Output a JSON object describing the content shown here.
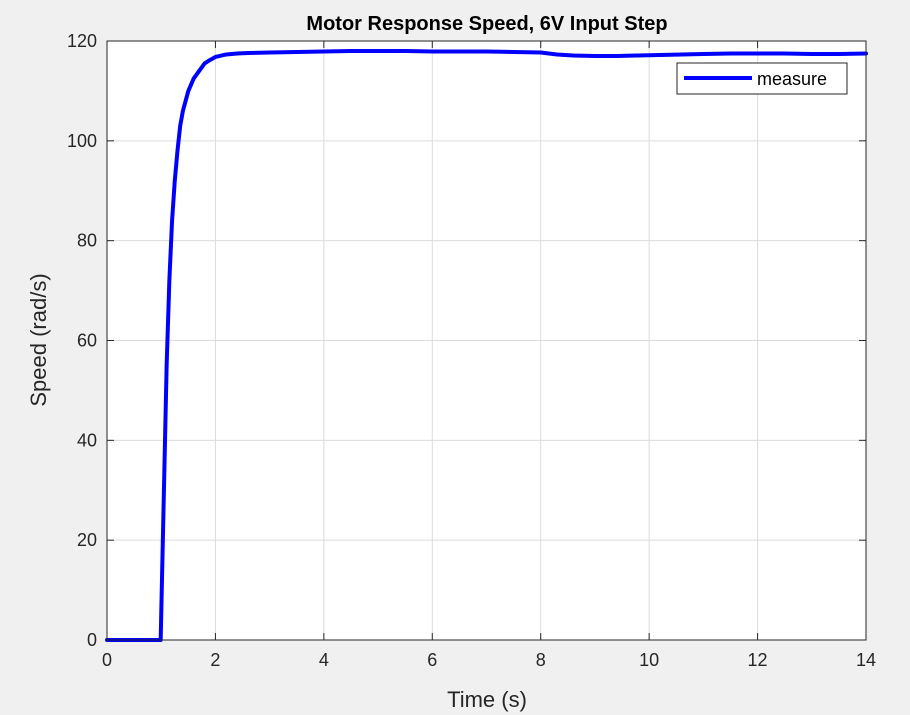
{
  "figure": {
    "background": "#f0f0f0",
    "plot_background": "#ffffff"
  },
  "chart_data": {
    "type": "line",
    "title": "Motor Response Speed, 6V Input Step",
    "xlabel": "Time (s)",
    "ylabel": "Speed (rad/s)",
    "xlim": [
      0,
      14
    ],
    "ylim": [
      0,
      120
    ],
    "xticks": [
      0,
      2,
      4,
      6,
      8,
      10,
      12,
      14
    ],
    "yticks": [
      0,
      20,
      40,
      60,
      80,
      100,
      120
    ],
    "grid": true,
    "legend_location": "top-right",
    "series": [
      {
        "name": "measure",
        "color": "#0000ff",
        "x": [
          0,
          0.5,
          0.99,
          1.0,
          1.05,
          1.1,
          1.15,
          1.2,
          1.25,
          1.3,
          1.35,
          1.4,
          1.5,
          1.6,
          1.7,
          1.8,
          1.9,
          2.0,
          2.2,
          2.4,
          2.6,
          3.0,
          3.5,
          4.0,
          4.5,
          5.0,
          5.5,
          6.0,
          6.5,
          7.0,
          7.5,
          8.0,
          8.3,
          8.6,
          9.0,
          9.4,
          9.8,
          10.2,
          10.6,
          11.0,
          11.5,
          12.0,
          12.5,
          13.0,
          13.5,
          14.0
        ],
        "y": [
          0,
          0,
          0,
          5,
          30,
          55,
          72,
          84,
          92,
          98,
          103,
          106,
          110,
          112.5,
          114,
          115.5,
          116.2,
          116.8,
          117.3,
          117.5,
          117.6,
          117.7,
          117.8,
          117.9,
          118.0,
          118.0,
          118.0,
          117.9,
          117.9,
          117.9,
          117.8,
          117.7,
          117.3,
          117.1,
          117.0,
          117.0,
          117.1,
          117.2,
          117.3,
          117.4,
          117.5,
          117.5,
          117.5,
          117.4,
          117.4,
          117.5
        ]
      }
    ]
  }
}
